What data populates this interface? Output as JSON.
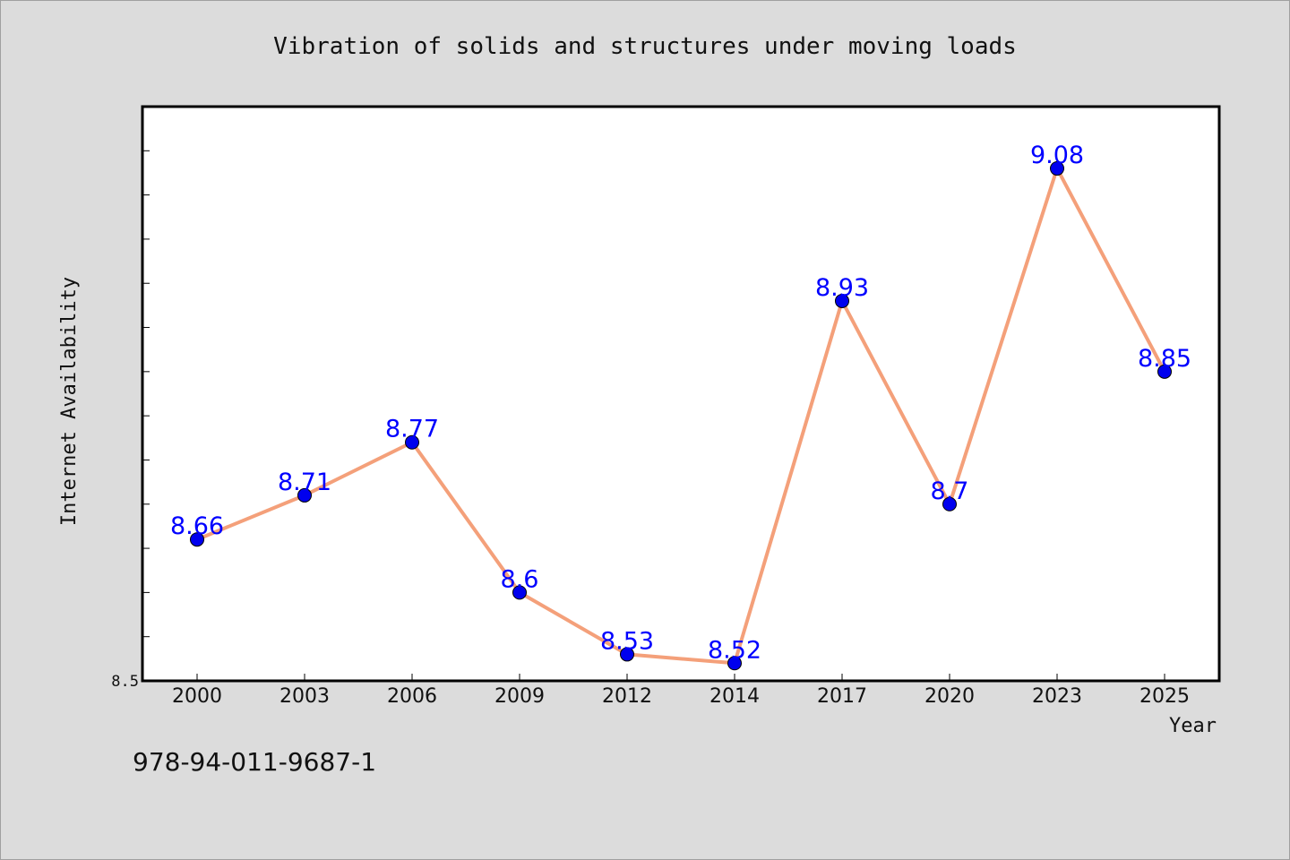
{
  "chart_data": {
    "type": "line",
    "title": "Vibration of solids and structures under moving loads",
    "xlabel": "Year",
    "ylabel": "Internet Availability",
    "categories": [
      "2000",
      "2003",
      "2006",
      "2009",
      "2012",
      "2014",
      "2017",
      "2020",
      "2023",
      "2025"
    ],
    "series": [
      {
        "values": [
          8.66,
          8.71,
          8.77,
          8.6,
          8.53,
          8.52,
          8.93,
          8.7,
          9.08,
          8.85
        ]
      }
    ],
    "data_labels": [
      "8.66",
      "8.71",
      "8.77",
      "8.6",
      "8.53",
      "8.52",
      "8.93",
      "8.7",
      "9.08",
      "8.85"
    ],
    "y_tick_labels": [
      "8.5"
    ],
    "ylim": [
      8.5,
      9.15
    ],
    "grid": false,
    "legend": "none",
    "colors": {
      "line": "#f4a07a",
      "marker": "#0000ee",
      "label": "#0000ff",
      "background": "#dcdcdc",
      "plot_background": "#ffffff"
    }
  },
  "footer": {
    "isbn": "978-94-011-9687-1"
  }
}
